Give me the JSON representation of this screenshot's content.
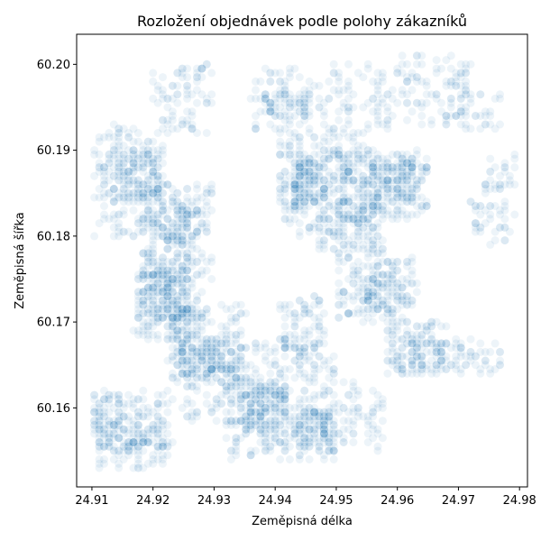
{
  "chart_data": {
    "type": "scatter",
    "title": "Rozložení objednávek podle polohy zákazníků",
    "xlabel": "Zeměpisná délka",
    "ylabel": "Zeměpisná šířka",
    "xlim": [
      24.9075,
      24.9813
    ],
    "ylim": [
      60.1508,
      60.2035
    ],
    "xticks": [
      24.91,
      24.92,
      24.93,
      24.94,
      24.95,
      24.96,
      24.97,
      24.98
    ],
    "yticks": [
      60.16,
      60.17,
      60.18,
      60.19,
      60.2
    ],
    "xtick_labels": [
      "24.91",
      "24.92",
      "24.93",
      "24.94",
      "24.95",
      "24.96",
      "24.97",
      "24.98"
    ],
    "ytick_labels": [
      "60.16",
      "60.17",
      "60.18",
      "60.19",
      "60.20"
    ],
    "point_color": "#1f77b4",
    "point_alpha": 0.08,
    "grid": false,
    "density_regions": [
      {
        "x0": 24.91,
        "x1": 24.922,
        "y0": 60.18,
        "y1": 60.193,
        "n": 180
      },
      {
        "x0": 24.912,
        "x1": 24.921,
        "y0": 60.184,
        "y1": 60.19,
        "n": 120
      },
      {
        "x0": 24.918,
        "x1": 24.93,
        "y0": 60.175,
        "y1": 60.186,
        "n": 150
      },
      {
        "x0": 24.922,
        "x1": 24.928,
        "y0": 60.179,
        "y1": 60.184,
        "n": 80
      },
      {
        "x0": 24.917,
        "x1": 24.928,
        "y0": 60.168,
        "y1": 60.178,
        "n": 200
      },
      {
        "x0": 24.918,
        "x1": 24.926,
        "y0": 60.17,
        "y1": 60.176,
        "n": 120
      },
      {
        "x0": 24.922,
        "x1": 24.935,
        "y0": 60.163,
        "y1": 60.172,
        "n": 170
      },
      {
        "x0": 24.924,
        "x1": 24.932,
        "y0": 60.164,
        "y1": 60.168,
        "n": 90
      },
      {
        "x0": 24.91,
        "x1": 24.923,
        "y0": 60.153,
        "y1": 60.162,
        "n": 180
      },
      {
        "x0": 24.911,
        "x1": 24.922,
        "y0": 60.155,
        "y1": 60.159,
        "n": 90
      },
      {
        "x0": 24.925,
        "x1": 24.936,
        "y0": 60.158,
        "y1": 60.166,
        "n": 110
      },
      {
        "x0": 24.932,
        "x1": 24.95,
        "y0": 60.154,
        "y1": 60.168,
        "n": 300
      },
      {
        "x0": 24.935,
        "x1": 24.942,
        "y0": 60.157,
        "y1": 60.163,
        "n": 140
      },
      {
        "x0": 24.944,
        "x1": 24.95,
        "y0": 60.155,
        "y1": 60.16,
        "n": 100
      },
      {
        "x0": 24.941,
        "x1": 24.948,
        "y0": 60.166,
        "y1": 60.173,
        "n": 80
      },
      {
        "x0": 24.95,
        "x1": 24.958,
        "y0": 60.155,
        "y1": 60.163,
        "n": 60
      },
      {
        "x0": 24.94,
        "x1": 24.956,
        "y0": 60.18,
        "y1": 60.192,
        "n": 260
      },
      {
        "x0": 24.943,
        "x1": 24.948,
        "y0": 60.183,
        "y1": 60.189,
        "n": 120
      },
      {
        "x0": 24.95,
        "x1": 24.965,
        "y0": 60.182,
        "y1": 60.19,
        "n": 220
      },
      {
        "x0": 24.955,
        "x1": 24.963,
        "y0": 60.184,
        "y1": 60.189,
        "n": 100
      },
      {
        "x0": 24.947,
        "x1": 24.958,
        "y0": 60.178,
        "y1": 60.184,
        "n": 100
      },
      {
        "x0": 24.95,
        "x1": 24.963,
        "y0": 60.17,
        "y1": 60.178,
        "n": 150
      },
      {
        "x0": 24.954,
        "x1": 24.96,
        "y0": 60.171,
        "y1": 60.176,
        "n": 70
      },
      {
        "x0": 24.958,
        "x1": 24.968,
        "y0": 60.164,
        "y1": 60.17,
        "n": 110
      },
      {
        "x0": 24.962,
        "x1": 24.97,
        "y0": 60.164,
        "y1": 60.168,
        "n": 60
      },
      {
        "x0": 24.969,
        "x1": 24.977,
        "y0": 60.164,
        "y1": 60.168,
        "n": 40
      },
      {
        "x0": 24.936,
        "x1": 24.96,
        "y0": 60.192,
        "y1": 60.2,
        "n": 150
      },
      {
        "x0": 24.938,
        "x1": 24.946,
        "y0": 60.194,
        "y1": 60.197,
        "n": 60
      },
      {
        "x0": 24.96,
        "x1": 24.972,
        "y0": 60.193,
        "y1": 60.201,
        "n": 100
      },
      {
        "x0": 24.92,
        "x1": 24.93,
        "y0": 60.192,
        "y1": 60.2,
        "n": 80
      },
      {
        "x0": 24.97,
        "x1": 24.977,
        "y0": 60.192,
        "y1": 60.197,
        "n": 30
      },
      {
        "x0": 24.974,
        "x1": 24.979,
        "y0": 60.185,
        "y1": 60.19,
        "n": 30
      },
      {
        "x0": 24.972,
        "x1": 24.979,
        "y0": 60.179,
        "y1": 60.184,
        "n": 40
      }
    ]
  }
}
